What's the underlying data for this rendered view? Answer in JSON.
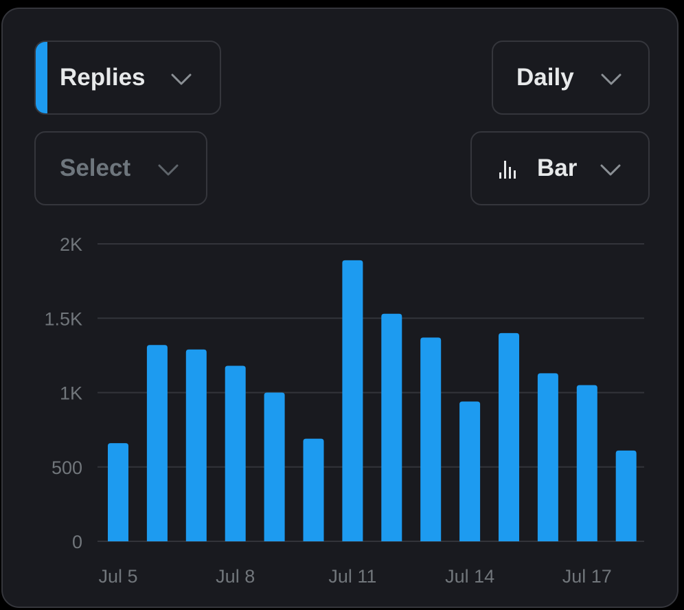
{
  "controls": {
    "metric_label": "Replies",
    "period_label": "Daily",
    "select_placeholder": "Select",
    "chart_type_label": "Bar"
  },
  "colors": {
    "accent": "#1d9bf0",
    "card_background": "#191a1f",
    "border": "#35363c",
    "gridline": "#33343a",
    "tick_text": "#71767b"
  },
  "icons": {
    "dropdown": "chevron-down-icon",
    "chart_type": "bar-chart-icon"
  },
  "chart_data": {
    "type": "bar",
    "categories": [
      "Jul 5",
      "Jul 6",
      "Jul 7",
      "Jul 8",
      "Jul 9",
      "Jul 10",
      "Jul 11",
      "Jul 12",
      "Jul 13",
      "Jul 14",
      "Jul 15",
      "Jul 16",
      "Jul 17",
      "Jul 18"
    ],
    "values": [
      660,
      1320,
      1290,
      1180,
      1000,
      690,
      1890,
      1530,
      1370,
      940,
      1400,
      1130,
      1050,
      610
    ],
    "x_tick_labels": [
      "Jul 5",
      "Jul 8",
      "Jul 11",
      "Jul 14",
      "Jul 17"
    ],
    "y_ticks": [
      0,
      500,
      1000,
      1500,
      2000
    ],
    "y_tick_labels": [
      "0",
      "500",
      "1K",
      "1.5K",
      "2K"
    ],
    "ylim": [
      0,
      2000
    ],
    "grid": true,
    "title": "",
    "xlabel": "",
    "ylabel": ""
  }
}
